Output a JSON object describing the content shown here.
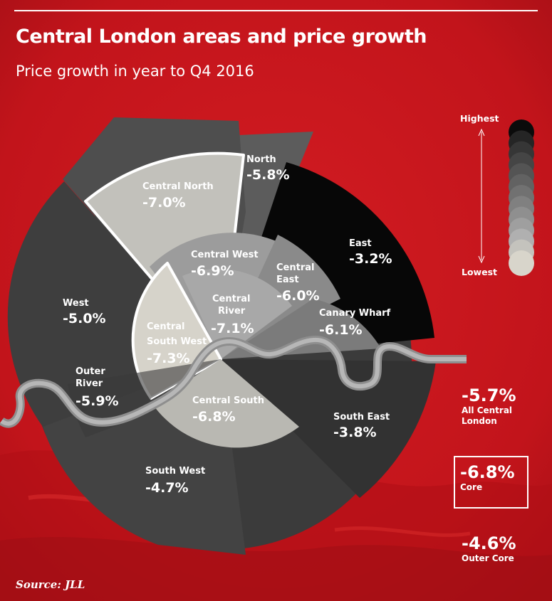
{
  "header": {
    "title": "Central London areas and price growth",
    "subtitle": "Price growth in year to Q4 2016"
  },
  "chart_data": {
    "type": "pie",
    "title": "Central London areas and price growth",
    "subtitle": "Price growth in year to Q4 2016",
    "unit": "%",
    "segments": [
      {
        "name": "North",
        "value": -5.8,
        "label": "-5.8%"
      },
      {
        "name": "East",
        "value": -3.2,
        "label": "-3.2%"
      },
      {
        "name": "South East",
        "value": -3.8,
        "label": "-3.8%"
      },
      {
        "name": "South West",
        "value": -4.7,
        "label": "-4.7%"
      },
      {
        "name": "West",
        "value": -5.0,
        "label": "-5.0%"
      },
      {
        "name": "Outer River",
        "value": -5.9,
        "label": "-5.9%"
      },
      {
        "name": "Central North",
        "value": -7.0,
        "label": "-7.0%"
      },
      {
        "name": "Central West",
        "value": -6.9,
        "label": "-6.9%"
      },
      {
        "name": "Central East",
        "value": -6.0,
        "label": "-6.0%"
      },
      {
        "name": "Canary Wharf",
        "value": -6.1,
        "label": "-6.1%"
      },
      {
        "name": "Central River",
        "value": -7.1,
        "label": "-7.1%"
      },
      {
        "name": "Central South West",
        "value": -7.3,
        "label": "-7.3%"
      },
      {
        "name": "Central South",
        "value": -6.8,
        "label": "-6.8%"
      }
    ],
    "legend": {
      "high_label": "Highest",
      "low_label": "Lowest",
      "placement": "right",
      "colors": [
        "#0b0b0b",
        "#252525",
        "#363636",
        "#454545",
        "#545454",
        "#626262",
        "#717171",
        "#808080",
        "#8f8f8f",
        "#9f9f9f",
        "#b0b0b0",
        "#c4c3bd",
        "#d8d5cb"
      ]
    },
    "summary": [
      {
        "value": "-5.7%",
        "label": "All Central London"
      },
      {
        "value": "-6.8%",
        "label": "Core"
      },
      {
        "value": "-4.6%",
        "label": "Outer Core"
      }
    ]
  },
  "legend": {
    "high_label": "Highest",
    "low_label": "Lowest"
  },
  "summary": {
    "all_value": "-5.7%",
    "all_label": "All Central London",
    "core_value": "-6.8%",
    "core_label": "Core",
    "outer_value": "-4.6%",
    "outer_label": "Outer Core"
  },
  "source": "Source: JLL",
  "colors": {
    "background": "#c8161d",
    "background_dark": "#a50f16",
    "river": "#8e8e8e"
  }
}
